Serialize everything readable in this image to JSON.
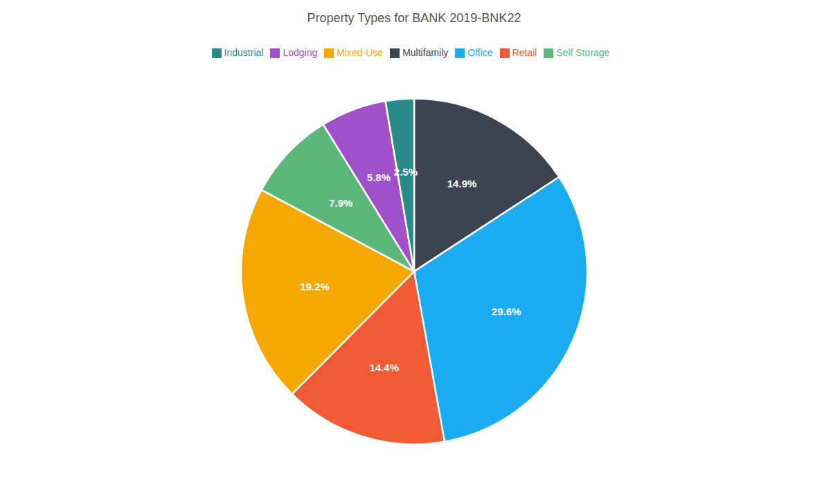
{
  "chart_data": {
    "type": "pie",
    "title": "Property Types for BANK 2019-BNK22",
    "categories": [
      "Multifamily",
      "Office",
      "Retail",
      "Mixed-Use",
      "Self Storage",
      "Lodging",
      "Industrial"
    ],
    "values": [
      14.9,
      29.6,
      14.4,
      19.2,
      7.9,
      5.8,
      2.5
    ],
    "value_labels": [
      "14.9%",
      "29.6%",
      "14.4%",
      "19.2%",
      "7.9%",
      "5.8%",
      "2.5%"
    ],
    "colors": [
      "#3d4451",
      "#1aabf0",
      "#f05a35",
      "#f5a800",
      "#5cb87a",
      "#a050c8",
      "#2a8a8a"
    ],
    "data_labels": true,
    "legend": "top"
  }
}
